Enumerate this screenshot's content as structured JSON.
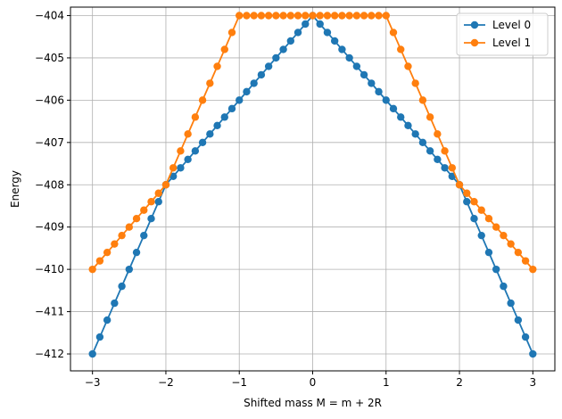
{
  "chart_data": {
    "type": "line",
    "title": "",
    "xlabel": "Shifted mass M = m + 2R",
    "ylabel": "Energy",
    "xlim": [
      -3.3,
      3.3
    ],
    "ylim": [
      -412.4,
      -403.8
    ],
    "xticks": [
      -3,
      -2,
      -1,
      0,
      1,
      2,
      3
    ],
    "xtick_labels": [
      "−3",
      "−2",
      "−1",
      "0",
      "1",
      "2",
      "3"
    ],
    "yticks": [
      -412,
      -411,
      -410,
      -409,
      -408,
      -407,
      -406,
      -405,
      -404
    ],
    "ytick_labels": [
      "−412",
      "−411",
      "−410",
      "−409",
      "−408",
      "−407",
      "−406",
      "−405",
      "−404"
    ],
    "grid": true,
    "legend_position": "top-right",
    "x": [
      -3.0,
      -2.9,
      -2.8,
      -2.7,
      -2.6,
      -2.5,
      -2.4,
      -2.3,
      -2.2,
      -2.1,
      -2.0,
      -1.9,
      -1.8,
      -1.7,
      -1.6,
      -1.5,
      -1.4,
      -1.3,
      -1.2,
      -1.1,
      -1.0,
      -0.9,
      -0.8,
      -0.7,
      -0.6,
      -0.5,
      -0.4,
      -0.3,
      -0.2,
      -0.1,
      0.0,
      0.1,
      0.2,
      0.3,
      0.4,
      0.5,
      0.6,
      0.7,
      0.8,
      0.9,
      1.0,
      1.1,
      1.2,
      1.3,
      1.4,
      1.5,
      1.6,
      1.7,
      1.8,
      1.9,
      2.0,
      2.1,
      2.2,
      2.3,
      2.4,
      2.5,
      2.6,
      2.7,
      2.8,
      2.9,
      3.0
    ],
    "series": [
      {
        "name": "Level 0",
        "color": "#1f77b4",
        "values": [
          -412.0,
          -411.6,
          -411.2,
          -410.8,
          -410.4,
          -410.0,
          -409.6,
          -409.2,
          -408.8,
          -408.4,
          -408.0,
          -407.8,
          -407.6,
          -407.4,
          -407.2,
          -407.0,
          -406.8,
          -406.6,
          -406.4,
          -406.2,
          -406.0,
          -405.8,
          -405.6,
          -405.4,
          -405.2,
          -405.0,
          -404.8,
          -404.6,
          -404.4,
          -404.2,
          -404.0,
          -404.2,
          -404.4,
          -404.6,
          -404.8,
          -405.0,
          -405.2,
          -405.4,
          -405.6,
          -405.8,
          -406.0,
          -406.2,
          -406.4,
          -406.6,
          -406.8,
          -407.0,
          -407.2,
          -407.4,
          -407.6,
          -407.8,
          -408.0,
          -408.4,
          -408.8,
          -409.2,
          -409.6,
          -410.0,
          -410.4,
          -410.8,
          -411.2,
          -411.6,
          -412.0
        ]
      },
      {
        "name": "Level 1",
        "color": "#ff7f0e",
        "values": [
          -410.0,
          -409.8,
          -409.6,
          -409.4,
          -409.2,
          -409.0,
          -408.8,
          -408.6,
          -408.4,
          -408.2,
          -408.0,
          -407.6,
          -407.2,
          -406.8,
          -406.4,
          -406.0,
          -405.6,
          -405.2,
          -404.8,
          -404.4,
          -404.0,
          -404.0,
          -404.0,
          -404.0,
          -404.0,
          -404.0,
          -404.0,
          -404.0,
          -404.0,
          -404.0,
          -404.0,
          -404.0,
          -404.0,
          -404.0,
          -404.0,
          -404.0,
          -404.0,
          -404.0,
          -404.0,
          -404.0,
          -404.0,
          -404.4,
          -404.8,
          -405.2,
          -405.6,
          -406.0,
          -406.4,
          -406.8,
          -407.2,
          -407.6,
          -408.0,
          -408.2,
          -408.4,
          -408.6,
          -408.8,
          -409.0,
          -409.2,
          -409.4,
          -409.6,
          -409.8,
          -410.0
        ]
      }
    ]
  }
}
